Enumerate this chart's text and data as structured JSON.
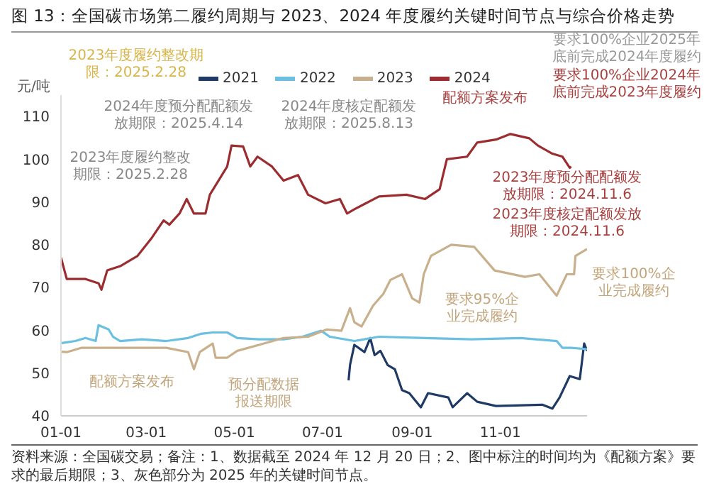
{
  "chart_data": {
    "type": "line",
    "title": "图 13：全国碳市场第二履约周期与 2023、2024 年度履约关键时间节点与综合价格走势",
    "ylabel": "元/吨",
    "xlim": [
      "--01-01",
      "--12-31"
    ],
    "xticks": [
      {
        "value": "--01-01",
        "label": "01-01"
      },
      {
        "value": "--03-01",
        "label": "03-01"
      },
      {
        "value": "--05-01",
        "label": "05-01"
      },
      {
        "value": "--07-01",
        "label": "07-01"
      },
      {
        "value": "--09-01",
        "label": "09-01"
      },
      {
        "value": "--11-01",
        "label": "11-01"
      }
    ],
    "ylim": [
      40,
      115
    ],
    "yticks": [
      40,
      50,
      60,
      70,
      80,
      90,
      100,
      110
    ],
    "grid": false,
    "legend": "top",
    "marker": "none",
    "line_style": "solid",
    "series": [
      {
        "name": "2021",
        "color": "#1f3a64",
        "x": [
          "--07-19",
          "--07-20",
          "--07-23",
          "--07-30",
          "--08-03",
          "--08-06",
          "--08-10",
          "--08-15",
          "--08-20",
          "--08-25",
          "--08-30",
          "--09-07",
          "--09-12",
          "--09-26",
          "--09-29",
          "--10-09",
          "--10-16",
          "--10-29",
          "--11-30",
          "--12-07",
          "--12-12",
          "--12-19",
          "--12-26",
          "--12-29",
          "--12-31"
        ],
        "values": [
          48.3,
          51.9,
          56.6,
          54.9,
          58.2,
          54.2,
          55.2,
          51.9,
          50.9,
          46,
          45.3,
          42,
          45.3,
          44.3,
          42,
          45.3,
          43.3,
          42.3,
          42.6,
          41.7,
          44.3,
          49.3,
          48.6,
          56.9,
          55.2
        ]
      },
      {
        "name": "2022",
        "color": "#6bbfe0",
        "x": [
          "--01-01",
          "--01-05",
          "--01-11",
          "--01-18",
          "--01-25",
          "--01-27",
          "--02-03",
          "--02-06",
          "--02-11",
          "--02-26",
          "--03-15",
          "--03-30",
          "--04-08",
          "--04-16",
          "--04-26",
          "--05-03",
          "--05-18",
          "--06-04",
          "--06-17",
          "--06-30",
          "--07-06",
          "--07-23",
          "--08-09",
          "--09-10",
          "--10-12",
          "--11-15",
          "--12-10",
          "--12-14",
          "--12-20",
          "--12-31"
        ],
        "values": [
          57,
          57.2,
          57.5,
          58.2,
          57.5,
          61.2,
          60.2,
          58.5,
          57.5,
          57.9,
          57.5,
          58.2,
          59.2,
          59.5,
          59.5,
          58.2,
          57.9,
          57.9,
          58.5,
          59.9,
          58.5,
          57.5,
          58.5,
          58.2,
          57.9,
          58.2,
          57.5,
          55.9,
          55.9,
          55.6
        ]
      },
      {
        "name": "2023",
        "color": "#c9b08c",
        "x": [
          "--01-01",
          "--01-05",
          "--01-15",
          "--02-26",
          "--03-15",
          "--03-30",
          "--04-03",
          "--04-07",
          "--04-16",
          "--04-18",
          "--04-26",
          "--05-03",
          "--05-18",
          "--06-04",
          "--06-21",
          "--07-04",
          "--07-14",
          "--07-20",
          "--07-23",
          "--07-28",
          "--08-05",
          "--08-12",
          "--08-17",
          "--08-25",
          "--09-01",
          "--09-06",
          "--09-09",
          "--09-14",
          "--09-28",
          "--10-14",
          "--10-28",
          "--11-18",
          "--11-28",
          "--12-10",
          "--12-17",
          "--12-22",
          "--12-23",
          "--12-31"
        ],
        "values": [
          55,
          54.9,
          55.9,
          55.9,
          55.9,
          54.9,
          50.9,
          54.9,
          56.9,
          53.6,
          53.6,
          55.2,
          56.6,
          58.2,
          58.5,
          60.2,
          59.9,
          65.2,
          61.9,
          60.9,
          65.8,
          68.5,
          71.8,
          73.1,
          67.5,
          66.5,
          73.1,
          77.4,
          80,
          79.5,
          74,
          72.5,
          73.1,
          68.1,
          73.1,
          73.1,
          77.4,
          79
        ]
      },
      {
        "name": "2024",
        "color": "#9b2d30",
        "x": [
          "--01-01",
          "--01-05",
          "--01-18",
          "--01-27",
          "--01-29",
          "--02-02",
          "--02-11",
          "--02-23",
          "--03-05",
          "--03-13",
          "--03-17",
          "--03-24",
          "--03-29",
          "--04-03",
          "--04-11",
          "--04-14",
          "--04-26",
          "--04-29",
          "--05-07",
          "--05-12",
          "--05-17",
          "--05-27",
          "--06-04",
          "--06-14",
          "--06-21",
          "--07-03",
          "--07-13",
          "--07-18",
          "--07-23",
          "--08-09",
          "--08-28",
          "--09-10",
          "--09-20",
          "--09-25",
          "--10-09",
          "--10-16",
          "--10-29",
          "--11-08",
          "--11-21",
          "--11-27",
          "--12-07",
          "--12-14",
          "--12-19",
          "--12-20"
        ],
        "values": [
          77,
          72,
          72,
          71,
          69.5,
          74,
          75,
          77.4,
          81.7,
          85.7,
          84.7,
          87.3,
          90.7,
          87.3,
          87.3,
          91.7,
          98.3,
          103.2,
          103,
          98.3,
          100.6,
          98.3,
          95,
          96.3,
          91.7,
          89.7,
          90.7,
          87.3,
          88.3,
          91.3,
          91.7,
          90.7,
          93,
          100,
          100.6,
          103.9,
          104.6,
          105.9,
          104.9,
          103.2,
          101.3,
          100.6,
          98,
          98.3
        ]
      }
    ],
    "annotations": [
      "2023年度履约整改期限：2025.2.28",
      "2024年度预分配配额发放期限：2025.4.14",
      "2023年度履约整改期限：2025.2.28",
      "2024年度核定配额发放期限：2025.8.13",
      "配额方案发布",
      "要求100%企业2024年底前完成2023年度履约",
      "要求100%企业2025年底前完成2024年度履约",
      "2023年度预分配配额发放期限：2024.11.6",
      "2023年度核定配额发放期限：2024.11.6",
      "要求95%企业完成履约",
      "要求100%企业完成履约",
      "配额方案发布",
      "预分配数据报送期限",
      "资料来源：全国碳交易；备注：1、数据截至 2024 年 12 月 20 日；2、图中标注的时间均为《配额方案》要求的最后期限；3、灰色部分为 2025 年的关键时间节点。"
    ]
  }
}
